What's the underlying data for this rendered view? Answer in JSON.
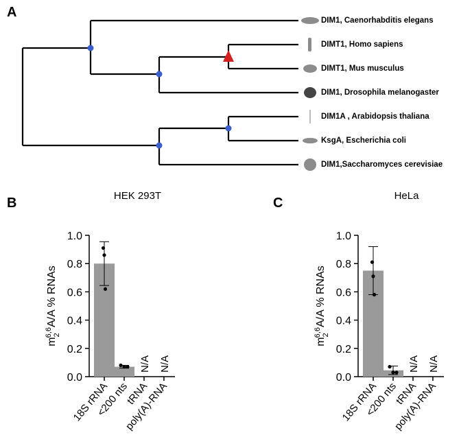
{
  "panel_labels": [
    "A",
    "B",
    "C"
  ],
  "tree": {
    "leaves": [
      "DIM1, Caenorhabditis elegans",
      "DIMT1, Homo sapiens",
      "DIMT1, Mus musculus",
      "DIM1, Drosophila melanogaster",
      "DIM1A , Arabidopsis thaliana",
      "KsgA, Escherichia coli",
      "DIM1,Saccharomyces cerevisiae"
    ]
  },
  "chart_data": [
    {
      "type": "bar",
      "title": "HEK 293T",
      "ylabel": {
        "base": "m",
        "sub": "2",
        "sup": "6,6",
        "rest": "A/A % RNAs"
      },
      "categories": [
        "18S rRNA",
        "<200 nts",
        "tRNA",
        "poly(A)-RNA"
      ],
      "values": [
        0.8,
        0.07,
        null,
        null
      ],
      "value_labels": [
        null,
        null,
        "N/A",
        "N/A"
      ],
      "errors": [
        0.155,
        0.01,
        null,
        null
      ],
      "points": [
        [
          0.91,
          0.86,
          0.62
        ],
        [
          0.08,
          0.07,
          0.07
        ],
        null,
        null
      ],
      "color": "#9a9a9a",
      "ylim": [
        0,
        1
      ],
      "yticks": [
        {
          "value": 0,
          "label": "0.0"
        },
        0.2,
        0.4,
        0.6,
        0.8,
        {
          "value": 1,
          "label": "1.0"
        }
      ]
    },
    {
      "type": "bar",
      "title": "HeLa",
      "ylabel": {
        "base": "m",
        "sub": "2",
        "sup": "6,6",
        "rest": "A/A % RNAs"
      },
      "categories": [
        "18S rRNA",
        "<200 nts",
        "tRNA",
        "poly(A)-RNA"
      ],
      "values": [
        0.75,
        0.045,
        null,
        null
      ],
      "value_labels": [
        null,
        null,
        "N/A",
        "N/A"
      ],
      "errors": [
        0.17,
        0.03,
        null,
        null
      ],
      "points": [
        [
          0.81,
          0.71,
          0.58
        ],
        [
          0.07,
          0.03,
          0.03
        ],
        null,
        null
      ],
      "color": "#9a9a9a",
      "ylim": [
        0,
        1
      ],
      "yticks": [
        {
          "value": 0,
          "label": "0.0"
        },
        0.2,
        0.4,
        0.6,
        0.8,
        {
          "value": 1,
          "label": "1.0"
        }
      ]
    }
  ]
}
